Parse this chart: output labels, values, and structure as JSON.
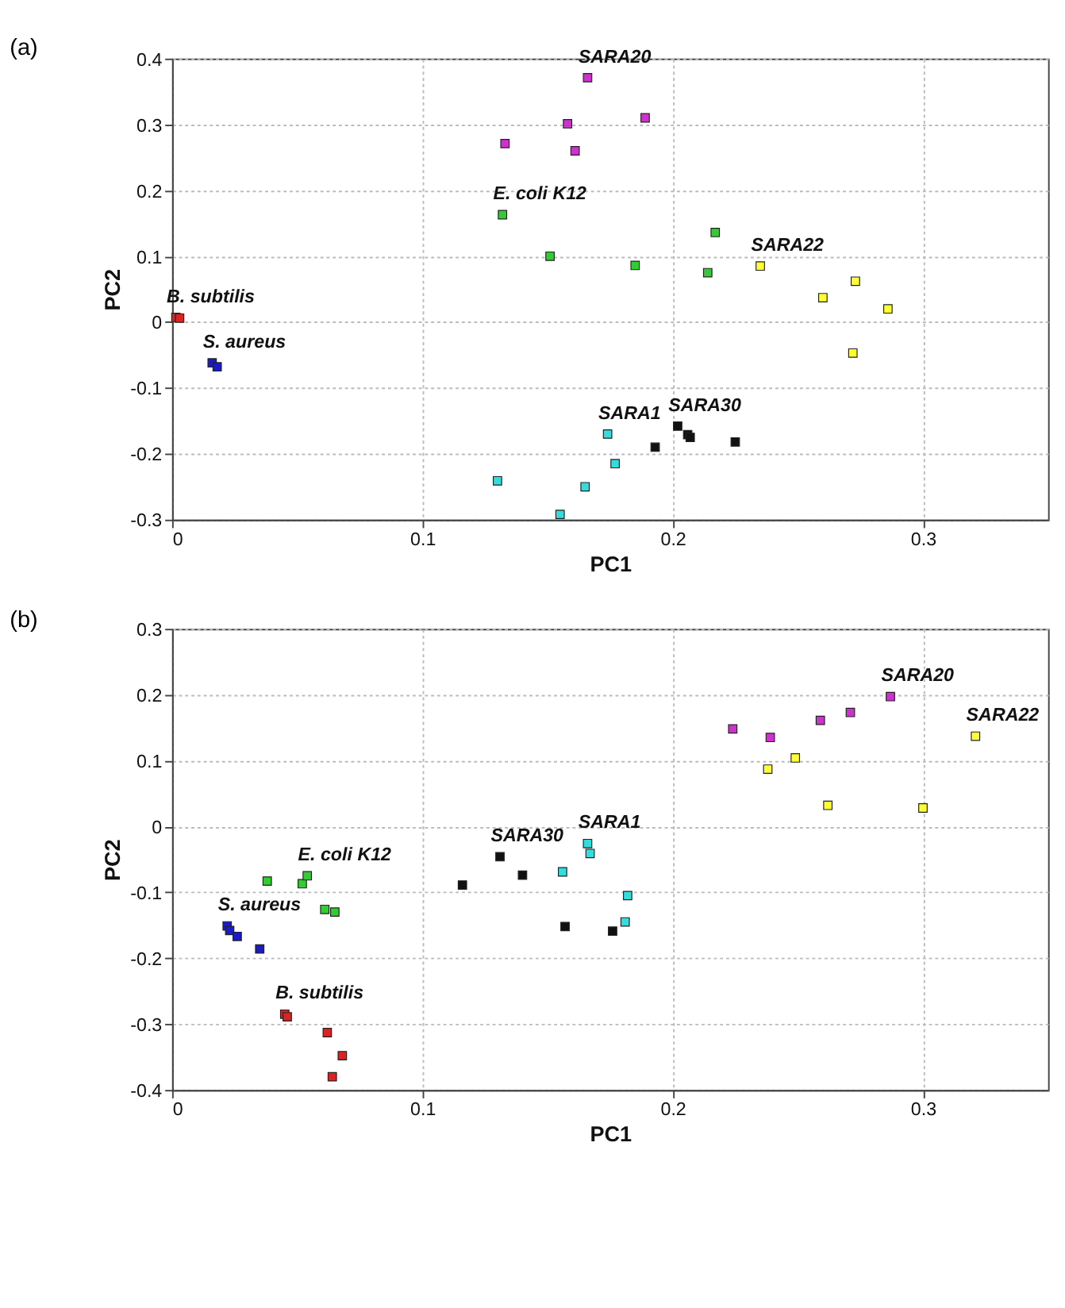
{
  "chart_data": [
    {
      "type": "scatter",
      "title": "(a)",
      "xlabel": "PC1",
      "ylabel": "PC2",
      "xlim": [
        0,
        0.35
      ],
      "ylim": [
        -0.3,
        0.4
      ],
      "xticks": [
        0,
        0.1,
        0.2,
        0.3
      ],
      "yticks": [
        -0.3,
        -0.2,
        -0.1,
        0,
        0.1,
        0.2,
        0.3,
        0.4
      ],
      "grid": true,
      "marker": "square",
      "series": [
        {
          "name": "SARA20",
          "color": "#cc33cc",
          "x": [
            0.133,
            0.166,
            0.158,
            0.161,
            0.189
          ],
          "values": [
            0.271,
            0.371,
            0.301,
            0.26,
            0.31
          ]
        },
        {
          "name": "E. coli K12",
          "color": "#33cc33",
          "x": [
            0.132,
            0.151,
            0.185,
            0.214,
            0.217
          ],
          "values": [
            0.163,
            0.1,
            0.086,
            0.075,
            0.136
          ]
        },
        {
          "name": "SARA22",
          "color": "#ffff33",
          "x": [
            0.235,
            0.26,
            0.273,
            0.286,
            0.272
          ],
          "values": [
            0.085,
            0.037,
            0.062,
            0.02,
            -0.047
          ]
        },
        {
          "name": "B. subtilis",
          "color": "#dd2222",
          "x": [
            0.0015,
            0.003
          ],
          "values": [
            0.007,
            0.006
          ]
        },
        {
          "name": "S. aureus",
          "color": "#1a1acc",
          "x": [
            0.016,
            0.018
          ],
          "values": [
            -0.062,
            -0.068
          ]
        },
        {
          "name": "SARA1",
          "color": "#33dddd",
          "x": [
            0.13,
            0.174,
            0.177,
            0.165,
            0.155
          ],
          "values": [
            -0.241,
            -0.17,
            -0.215,
            -0.25,
            -0.292
          ]
        },
        {
          "name": "SARA30",
          "color": "#111111",
          "x": [
            0.193,
            0.202,
            0.206,
            0.207,
            0.225
          ],
          "values": [
            -0.19,
            -0.158,
            -0.171,
            -0.175,
            -0.182
          ]
        }
      ]
    },
    {
      "type": "scatter",
      "title": "(b)",
      "xlabel": "PC1",
      "ylabel": "PC2",
      "xlim": [
        0,
        0.35
      ],
      "ylim": [
        -0.4,
        0.3
      ],
      "xticks": [
        0,
        0.1,
        0.2,
        0.3
      ],
      "yticks": [
        -0.4,
        -0.3,
        -0.2,
        -0.1,
        0,
        0.1,
        0.2,
        0.3
      ],
      "grid": true,
      "marker": "square",
      "series": [
        {
          "name": "SARA20",
          "color": "#cc33cc",
          "x": [
            0.224,
            0.239,
            0.259,
            0.271,
            0.287
          ],
          "values": [
            0.148,
            0.135,
            0.161,
            0.173,
            0.197
          ]
        },
        {
          "name": "SARA22",
          "color": "#ffff33",
          "x": [
            0.238,
            0.249,
            0.262,
            0.3,
            0.321
          ],
          "values": [
            0.087,
            0.104,
            0.032,
            0.028,
            0.137
          ]
        },
        {
          "name": "SARA30",
          "color": "#111111",
          "x": [
            0.116,
            0.131,
            0.14,
            0.157,
            0.176
          ],
          "values": [
            -0.089,
            -0.046,
            -0.074,
            -0.152,
            -0.159
          ]
        },
        {
          "name": "SARA1",
          "color": "#33dddd",
          "x": [
            0.156,
            0.166,
            0.167,
            0.182,
            0.181
          ],
          "values": [
            -0.069,
            -0.026,
            -0.041,
            -0.105,
            -0.145
          ]
        },
        {
          "name": "E. coli K12",
          "color": "#33cc33",
          "x": [
            0.038,
            0.052,
            0.054,
            0.061,
            0.065
          ],
          "values": [
            -0.083,
            -0.087,
            -0.075,
            -0.126,
            -0.13
          ]
        },
        {
          "name": "S. aureus",
          "color": "#1a1acc",
          "x": [
            0.022,
            0.023,
            0.026,
            0.035
          ],
          "values": [
            -0.151,
            -0.158,
            -0.167,
            -0.186
          ]
        },
        {
          "name": "B. subtilis",
          "color": "#dd2222",
          "x": [
            0.045,
            0.046,
            0.062,
            0.068,
            0.064
          ],
          "values": [
            -0.285,
            -0.289,
            -0.313,
            -0.348,
            -0.38
          ]
        }
      ]
    }
  ]
}
